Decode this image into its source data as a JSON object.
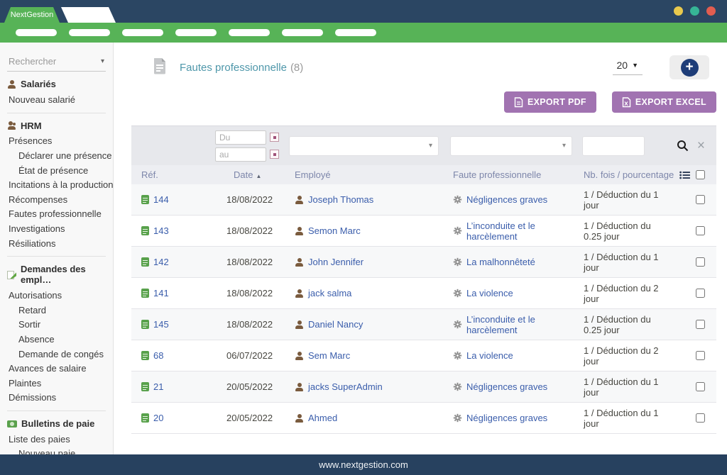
{
  "brand": "NextGestion",
  "topnav": {
    "pill_count": 7
  },
  "window_controls": {
    "dots": [
      "yellow",
      "teal",
      "red"
    ]
  },
  "colors": {
    "navy": "#2b4663",
    "accent_green": "#57b357",
    "button_purple": "#a173b1",
    "link_blue": "#3a5dab",
    "title_teal": "#4e97aa"
  },
  "sidebar": {
    "search_placeholder": "Rechercher",
    "sections": [
      {
        "icon": "person",
        "title": "Salariés",
        "items": [
          {
            "label": "Nouveau salarié",
            "indent": 0
          }
        ]
      },
      {
        "icon": "people",
        "title": "HRM",
        "items": [
          {
            "label": "Présences",
            "indent": 0
          },
          {
            "label": "Déclarer une présence",
            "indent": 1
          },
          {
            "label": "État de présence",
            "indent": 1
          },
          {
            "label": "Incitations à la production",
            "indent": 0
          },
          {
            "label": "Récompenses",
            "indent": 0
          },
          {
            "label": "Fautes professionnelle",
            "indent": 0
          },
          {
            "label": "Investigations",
            "indent": 0
          },
          {
            "label": "Résiliations",
            "indent": 0
          }
        ]
      },
      {
        "icon": "request",
        "title": "Demandes des empl…",
        "items": [
          {
            "label": "Autorisations",
            "indent": 0
          },
          {
            "label": "Retard",
            "indent": 1
          },
          {
            "label": "Sortir",
            "indent": 1
          },
          {
            "label": "Absence",
            "indent": 1
          },
          {
            "label": "Demande de congés",
            "indent": 1
          },
          {
            "label": "Avances de salaire",
            "indent": 0
          },
          {
            "label": "Plaintes",
            "indent": 0
          },
          {
            "label": "Démissions",
            "indent": 0
          }
        ]
      },
      {
        "icon": "payroll",
        "title": "Bulletins de paie",
        "items": [
          {
            "label": "Liste des paies",
            "indent": 0
          },
          {
            "label": "Nouveau paie",
            "indent": 1
          }
        ]
      }
    ]
  },
  "main": {
    "title": "Fautes professionnelle",
    "count": "(8)",
    "page_size": "20",
    "buttons": {
      "export_pdf": "EXPORT PDF",
      "export_excel": "EXPORT EXCEL"
    },
    "filters": {
      "date_from_placeholder": "Du",
      "date_to_placeholder": "au"
    },
    "table": {
      "headers": {
        "ref": "Réf.",
        "date": "Date",
        "employee": "Employé",
        "fault": "Faute professionnelle",
        "count": "Nb. fois / pourcentage…"
      },
      "rows": [
        {
          "ref": "144",
          "date": "18/08/2022",
          "employee": "Joseph Thomas",
          "fault": "Négligences graves",
          "count": "1 / Déduction du 1 jour"
        },
        {
          "ref": "143",
          "date": "18/08/2022",
          "employee": "Semon Marc",
          "fault": "L’inconduite et le harcèlement",
          "count": "1 / Déduction du 0.25 jour"
        },
        {
          "ref": "142",
          "date": "18/08/2022",
          "employee": "John Jennifer",
          "fault": "La malhonnêteté",
          "count": "1 / Déduction du 1 jour"
        },
        {
          "ref": "141",
          "date": "18/08/2022",
          "employee": "jack salma",
          "fault": "La violence",
          "count": "1 / Déduction du 2 jour"
        },
        {
          "ref": "145",
          "date": "18/08/2022",
          "employee": "Daniel Nancy",
          "fault": "L’inconduite et le harcèlement",
          "count": "1 / Déduction du 0.25 jour"
        },
        {
          "ref": "68",
          "date": "06/07/2022",
          "employee": "Sem Marc",
          "fault": "La violence",
          "count": "1 / Déduction du 2 jour"
        },
        {
          "ref": "21",
          "date": "20/05/2022",
          "employee": "jacks SuperAdmin",
          "fault": "Négligences graves",
          "count": "1 / Déduction du 1 jour"
        },
        {
          "ref": "20",
          "date": "20/05/2022",
          "employee": "Ahmed",
          "fault": "Négligences graves",
          "count": "1 / Déduction du 1 jour"
        }
      ]
    }
  },
  "footer": {
    "url": "www.nextgestion.com"
  }
}
